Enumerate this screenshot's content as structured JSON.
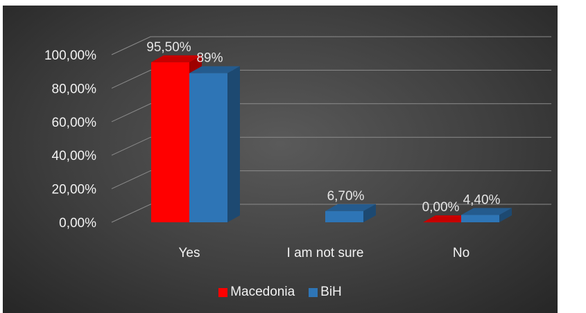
{
  "chart_data": {
    "type": "bar",
    "categories": [
      "Yes",
      "I am  not sure",
      "No"
    ],
    "series": [
      {
        "name": "Macedonia",
        "values": [
          95.5,
          null,
          0
        ],
        "labels": [
          "95,50%",
          "",
          "0,00%"
        ],
        "color": "#ff0000"
      },
      {
        "name": "BiH",
        "values": [
          89,
          6.7,
          4.4
        ],
        "labels": [
          "89%",
          "6,70%",
          "4,40%"
        ],
        "color": "#2e75b6"
      }
    ],
    "yticks": [
      "0,00%",
      "20,00%",
      "40,00%",
      "60,00%",
      "80,00%",
      "100,00%"
    ],
    "ylim": [
      0,
      100
    ],
    "grid": true,
    "legend": "bottom",
    "style": "3d-clustered-column"
  }
}
